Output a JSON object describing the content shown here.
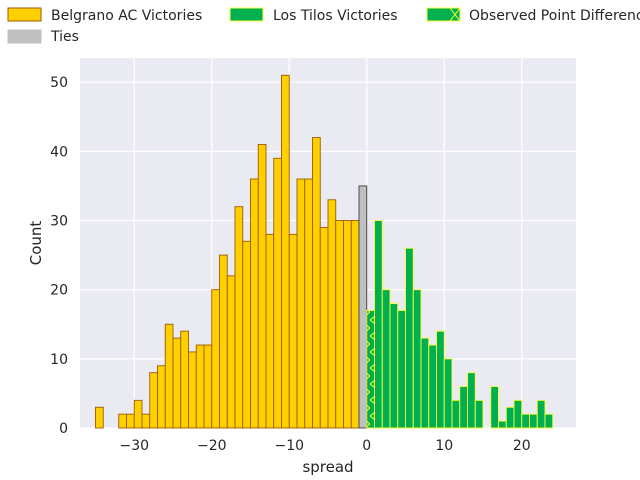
{
  "chart_data": {
    "type": "bar",
    "subtype": "histogram",
    "xlabel": "spread",
    "ylabel": "Count",
    "xlim": [
      -37,
      27
    ],
    "ylim": [
      0,
      53.5
    ],
    "xticks": [
      -30,
      -20,
      -10,
      0,
      10,
      20
    ],
    "xtick_labels": [
      "−30",
      "−20",
      "−10",
      "0",
      "10",
      "20"
    ],
    "yticks": [
      0,
      10,
      20,
      30,
      40,
      50
    ],
    "ytick_labels": [
      "0",
      "10",
      "20",
      "30",
      "40",
      "50"
    ],
    "grid": true,
    "legend_position": "top",
    "bin_width": 1,
    "colors": {
      "belgrano_fill": "#ffd000",
      "belgrano_edge": "#a05a00",
      "ties_fill": "#c0c0c0",
      "ties_edge": "#404040",
      "tilos_fill": "#00b050",
      "tilos_edge": "#ffff33",
      "observed_fill": "#00b050",
      "observed_hatch": "#ffff33",
      "plot_bg": "#eaeaf2",
      "grid": "#ffffff"
    },
    "series": [
      {
        "name": "Belgrano AC Victories",
        "bins": [
          {
            "x": -35,
            "count": 3
          },
          {
            "x": -32,
            "count": 2
          },
          {
            "x": -31,
            "count": 2
          },
          {
            "x": -30,
            "count": 4
          },
          {
            "x": -29,
            "count": 2
          },
          {
            "x": -28,
            "count": 8
          },
          {
            "x": -27,
            "count": 9
          },
          {
            "x": -26,
            "count": 15
          },
          {
            "x": -25,
            "count": 13
          },
          {
            "x": -24,
            "count": 14
          },
          {
            "x": -23,
            "count": 11
          },
          {
            "x": -22,
            "count": 12
          },
          {
            "x": -21,
            "count": 12
          },
          {
            "x": -20,
            "count": 20
          },
          {
            "x": -19,
            "count": 25
          },
          {
            "x": -18,
            "count": 22
          },
          {
            "x": -17,
            "count": 32
          },
          {
            "x": -16,
            "count": 27
          },
          {
            "x": -15,
            "count": 36
          },
          {
            "x": -14,
            "count": 41
          },
          {
            "x": -13,
            "count": 28
          },
          {
            "x": -12,
            "count": 39
          },
          {
            "x": -11,
            "count": 51
          },
          {
            "x": -10,
            "count": 28
          },
          {
            "x": -9,
            "count": 36
          },
          {
            "x": -8,
            "count": 36
          },
          {
            "x": -7,
            "count": 42
          },
          {
            "x": -6,
            "count": 29
          },
          {
            "x": -5,
            "count": 33
          },
          {
            "x": -4,
            "count": 30
          },
          {
            "x": -3,
            "count": 30
          },
          {
            "x": -2,
            "count": 30
          }
        ]
      },
      {
        "name": "Ties",
        "bins": [
          {
            "x": -1,
            "count": 35
          }
        ]
      },
      {
        "name": "Los Tilos Victories",
        "bins": [
          {
            "x": 1,
            "count": 30
          },
          {
            "x": 2,
            "count": 20
          },
          {
            "x": 3,
            "count": 18
          },
          {
            "x": 4,
            "count": 17
          },
          {
            "x": 5,
            "count": 26
          },
          {
            "x": 6,
            "count": 20
          },
          {
            "x": 7,
            "count": 13
          },
          {
            "x": 8,
            "count": 12
          },
          {
            "x": 9,
            "count": 14
          },
          {
            "x": 10,
            "count": 10
          },
          {
            "x": 11,
            "count": 4
          },
          {
            "x": 12,
            "count": 6
          },
          {
            "x": 13,
            "count": 8
          },
          {
            "x": 14,
            "count": 4
          },
          {
            "x": 16,
            "count": 6
          },
          {
            "x": 17,
            "count": 1
          },
          {
            "x": 18,
            "count": 3
          },
          {
            "x": 19,
            "count": 4
          },
          {
            "x": 20,
            "count": 2
          },
          {
            "x": 21,
            "count": 2
          },
          {
            "x": 22,
            "count": 4
          },
          {
            "x": 23,
            "count": 2
          }
        ]
      },
      {
        "name": "Observed Point Difference",
        "bins": [
          {
            "x": 0,
            "count": 17
          }
        ]
      }
    ],
    "legend": [
      {
        "label": "Belgrano AC Victories",
        "swatch": "belgrano"
      },
      {
        "label": "Los Tilos Victories",
        "swatch": "tilos"
      },
      {
        "label": "Observed Point Difference",
        "swatch": "observed"
      },
      {
        "label": "Ties",
        "swatch": "ties"
      }
    ]
  }
}
